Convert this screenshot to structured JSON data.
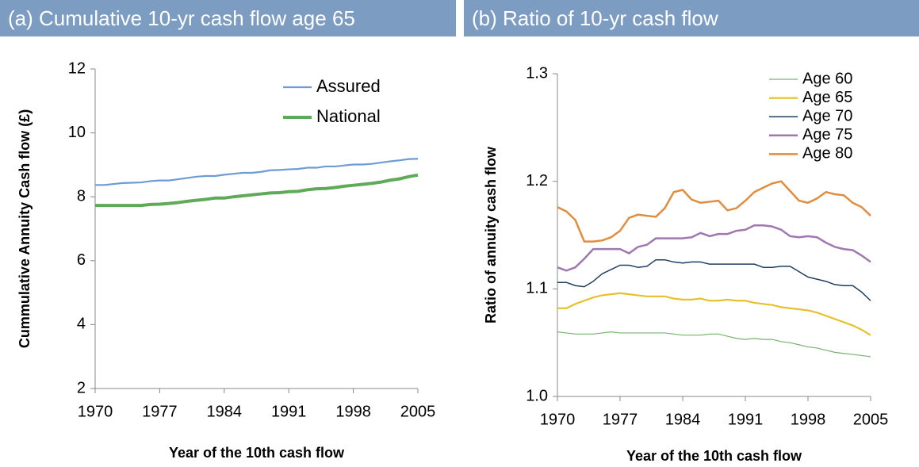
{
  "chart_data": [
    {
      "type": "line",
      "title": "(a) Cumulative 10-yr cash flow age 65",
      "xlabel": "Year of the 10th cash flow",
      "ylabel": "Cummulative Annuity Cash flow (£)",
      "x": [
        1970,
        1971,
        1972,
        1973,
        1974,
        1975,
        1976,
        1977,
        1978,
        1979,
        1980,
        1981,
        1982,
        1983,
        1984,
        1985,
        1986,
        1987,
        1988,
        1989,
        1990,
        1991,
        1992,
        1993,
        1994,
        1995,
        1996,
        1997,
        1998,
        1999,
        2000,
        2001,
        2002,
        2003,
        2004,
        2005
      ],
      "xlim": [
        1970,
        2005
      ],
      "xticks": [
        1970,
        1977,
        1984,
        1991,
        1998,
        2005
      ],
      "ylim": [
        2,
        12
      ],
      "yticks": [
        2,
        4,
        6,
        8,
        10,
        12
      ],
      "grid": false,
      "legend": "upper right",
      "series": [
        {
          "name": "Assured",
          "color": "#6e9bd3",
          "width": 2.2,
          "values": [
            8.37,
            8.37,
            8.4,
            8.43,
            8.44,
            8.45,
            8.49,
            8.51,
            8.51,
            8.55,
            8.59,
            8.63,
            8.65,
            8.65,
            8.69,
            8.72,
            8.75,
            8.75,
            8.78,
            8.83,
            8.84,
            8.86,
            8.87,
            8.91,
            8.91,
            8.95,
            8.95,
            8.98,
            9.01,
            9.01,
            9.03,
            9.07,
            9.11,
            9.14,
            9.18,
            9.19
          ]
        },
        {
          "name": "National",
          "color": "#5faa59",
          "width": 4,
          "values": [
            7.73,
            7.73,
            7.73,
            7.73,
            7.73,
            7.73,
            7.76,
            7.77,
            7.79,
            7.82,
            7.86,
            7.89,
            7.92,
            7.96,
            7.96,
            8.0,
            8.03,
            8.06,
            8.09,
            8.12,
            8.13,
            8.16,
            8.17,
            8.22,
            8.25,
            8.26,
            8.29,
            8.33,
            8.36,
            8.39,
            8.42,
            8.46,
            8.52,
            8.56,
            8.63,
            8.68
          ]
        }
      ]
    },
    {
      "type": "line",
      "title": "(b) Ratio of 10-yr cash flow",
      "xlabel": "Year of the 10th cash flow",
      "ylabel": "Ratio of annuity cash flow",
      "x": [
        1970,
        1971,
        1972,
        1973,
        1974,
        1975,
        1976,
        1977,
        1978,
        1979,
        1980,
        1981,
        1982,
        1983,
        1984,
        1985,
        1986,
        1987,
        1988,
        1989,
        1990,
        1991,
        1992,
        1993,
        1994,
        1995,
        1996,
        1997,
        1998,
        1999,
        2000,
        2001,
        2002,
        2003,
        2004,
        2005
      ],
      "xlim": [
        1970,
        2005
      ],
      "xticks": [
        1970,
        1977,
        1984,
        1991,
        1998,
        2005
      ],
      "ylim": [
        1.0,
        1.3
      ],
      "yticks": [
        {
          "value": 1.0,
          "label": "1.0"
        },
        1.1,
        1.2,
        1.3
      ],
      "grid": false,
      "legend": "upper right",
      "series": [
        {
          "name": "Age 60",
          "color": "#77b36f",
          "width": 1.2,
          "values": [
            1.06,
            1.059,
            1.058,
            1.058,
            1.058,
            1.059,
            1.06,
            1.059,
            1.059,
            1.059,
            1.059,
            1.059,
            1.059,
            1.058,
            1.057,
            1.057,
            1.057,
            1.058,
            1.058,
            1.056,
            1.054,
            1.053,
            1.054,
            1.053,
            1.053,
            1.051,
            1.05,
            1.048,
            1.046,
            1.045,
            1.043,
            1.041,
            1.04,
            1.039,
            1.038,
            1.037
          ]
        },
        {
          "name": "Age 65",
          "color": "#e6c12b",
          "width": 2.2,
          "values": [
            1.082,
            1.082,
            1.086,
            1.089,
            1.092,
            1.094,
            1.095,
            1.096,
            1.095,
            1.094,
            1.093,
            1.093,
            1.093,
            1.091,
            1.09,
            1.09,
            1.091,
            1.089,
            1.089,
            1.09,
            1.089,
            1.089,
            1.087,
            1.086,
            1.085,
            1.083,
            1.082,
            1.081,
            1.08,
            1.078,
            1.075,
            1.072,
            1.069,
            1.066,
            1.062,
            1.057
          ]
        },
        {
          "name": "Age 70",
          "color": "#1f3f60",
          "width": 1.5,
          "values": [
            1.106,
            1.106,
            1.103,
            1.102,
            1.107,
            1.114,
            1.118,
            1.122,
            1.122,
            1.12,
            1.121,
            1.127,
            1.127,
            1.125,
            1.124,
            1.125,
            1.125,
            1.123,
            1.123,
            1.123,
            1.123,
            1.123,
            1.123,
            1.12,
            1.12,
            1.121,
            1.121,
            1.116,
            1.111,
            1.109,
            1.107,
            1.104,
            1.103,
            1.103,
            1.097,
            1.089
          ]
        },
        {
          "name": "Age 75",
          "color": "#9f78b0",
          "width": 2.5,
          "values": [
            1.12,
            1.117,
            1.12,
            1.128,
            1.137,
            1.137,
            1.137,
            1.137,
            1.133,
            1.139,
            1.141,
            1.147,
            1.147,
            1.147,
            1.147,
            1.148,
            1.152,
            1.149,
            1.151,
            1.151,
            1.154,
            1.155,
            1.159,
            1.159,
            1.158,
            1.155,
            1.149,
            1.148,
            1.149,
            1.148,
            1.143,
            1.139,
            1.137,
            1.136,
            1.131,
            1.125
          ]
        },
        {
          "name": "Age 80",
          "color": "#e08d3f",
          "width": 2.5,
          "values": [
            1.176,
            1.172,
            1.164,
            1.144,
            1.144,
            1.145,
            1.148,
            1.154,
            1.166,
            1.169,
            1.168,
            1.167,
            1.175,
            1.19,
            1.192,
            1.183,
            1.18,
            1.181,
            1.182,
            1.173,
            1.175,
            1.182,
            1.19,
            1.194,
            1.198,
            1.2,
            1.191,
            1.182,
            1.18,
            1.184,
            1.19,
            1.188,
            1.187,
            1.18,
            1.176,
            1.168
          ]
        }
      ]
    }
  ]
}
